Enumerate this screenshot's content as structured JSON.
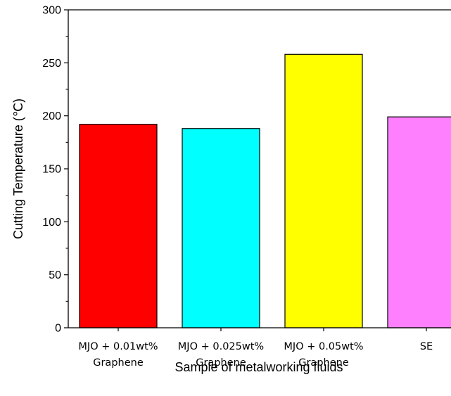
{
  "chart_data": {
    "type": "bar",
    "title": "",
    "xlabel": "Sample of metalworking fluids",
    "ylabel": "Cutting Temperature (℃)",
    "ylim": [
      0,
      300
    ],
    "yticks": [
      0,
      50,
      100,
      150,
      200,
      250,
      300
    ],
    "grid": false,
    "legend": "none",
    "categories": [
      [
        "MJO + 0.01wt%",
        "Graphene"
      ],
      [
        "MJO + 0.025wt%",
        "Graphene"
      ],
      [
        "MJO + 0.05wt%",
        "Graphene"
      ],
      [
        "SE"
      ]
    ],
    "values": [
      192,
      188,
      258,
      199
    ],
    "colors": [
      "#ff0000",
      "#00ffff",
      "#ffff00",
      "#ff80ff"
    ]
  }
}
